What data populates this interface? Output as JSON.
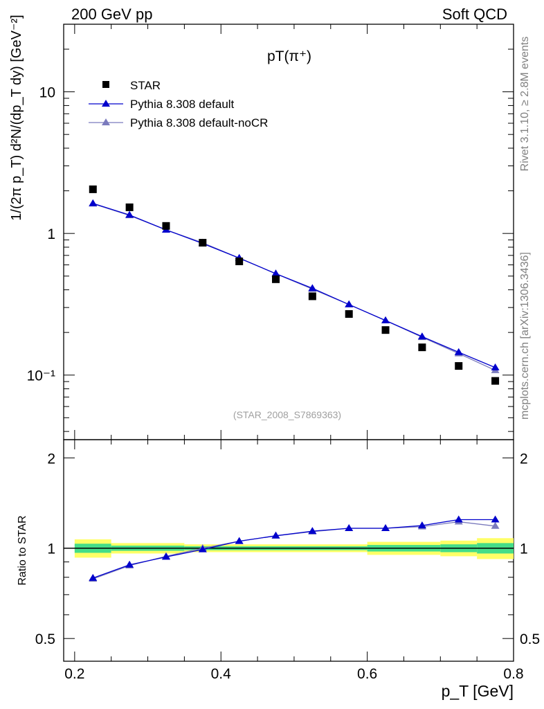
{
  "header": {
    "left": "200 GeV pp",
    "right": "Soft QCD"
  },
  "side": {
    "rivet": "Rivet 3.1.10, ≥ 2.8M events",
    "site": "mcplots.cern.ch [arXiv:1306.3436]"
  },
  "colors": {
    "data": "#000000",
    "default": "#0000cc",
    "noCR": "#7b7bbd",
    "band_inner": "#44dd88",
    "band_outer": "#ffff66"
  },
  "chart_data": {
    "type": "scatter",
    "title": "pT(π⁺)",
    "analysis": "(STAR_2008_S7869363)",
    "xlabel": "p_T [GeV]",
    "ylabel": "1/(2π p_T) d²N/(dp_T dy) [GeV⁻²]",
    "ratio_ylabel": "Ratio to STAR",
    "xlim": [
      0.185,
      0.8
    ],
    "ylim": [
      0.035,
      30
    ],
    "yscale": "log",
    "ratio_ylim": [
      0.42,
      2.3
    ],
    "ratio_yscale": "log",
    "x_ticks": [
      "0.2",
      "0.4",
      "0.6",
      "0.8"
    ],
    "y_ticks": [
      "10",
      "1",
      "10⁻¹"
    ],
    "ratio_ticks": [
      "2",
      "1",
      "0.5"
    ],
    "legend": [
      "STAR",
      "Pythia 8.308 default",
      "Pythia 8.308 default-noCR"
    ],
    "legend_position": "top-left",
    "x": [
      0.225,
      0.275,
      0.325,
      0.375,
      0.425,
      0.475,
      0.525,
      0.575,
      0.625,
      0.675,
      0.725,
      0.775
    ],
    "series": [
      {
        "name": "STAR",
        "values": [
          2.05,
          1.53,
          1.13,
          0.86,
          0.635,
          0.475,
          0.36,
          0.27,
          0.208,
          0.157,
          0.116,
          0.091
        ]
      },
      {
        "name": "Pythia 8.308 default",
        "values": [
          1.63,
          1.35,
          1.06,
          0.85,
          0.67,
          0.52,
          0.41,
          0.315,
          0.243,
          0.187,
          0.145,
          0.113
        ]
      },
      {
        "name": "Pythia 8.308 default-noCR",
        "values": [
          1.62,
          1.34,
          1.06,
          0.86,
          0.67,
          0.52,
          0.405,
          0.315,
          0.243,
          0.185,
          0.142,
          0.108
        ]
      }
    ],
    "ratio_series": [
      {
        "name": "Pythia 8.308 default",
        "values": [
          0.795,
          0.88,
          0.935,
          0.99,
          1.055,
          1.1,
          1.14,
          1.165,
          1.165,
          1.19,
          1.245,
          1.245
        ]
      },
      {
        "name": "Pythia 8.308 default-noCR",
        "values": [
          0.79,
          0.875,
          0.94,
          1.0,
          1.055,
          1.1,
          1.135,
          1.165,
          1.165,
          1.18,
          1.225,
          1.185
        ]
      }
    ],
    "uncertainty_bands": [
      {
        "x_range": [
          0.2,
          0.25
        ],
        "inner": 0.035,
        "outer": 0.07
      },
      {
        "x_range": [
          0.25,
          0.35
        ],
        "inner": 0.02,
        "outer": 0.04
      },
      {
        "x_range": [
          0.35,
          0.6
        ],
        "inner": 0.015,
        "outer": 0.03
      },
      {
        "x_range": [
          0.6,
          0.7
        ],
        "inner": 0.025,
        "outer": 0.05
      },
      {
        "x_range": [
          0.7,
          0.75
        ],
        "inner": 0.03,
        "outer": 0.06
      },
      {
        "x_range": [
          0.75,
          0.8
        ],
        "inner": 0.04,
        "outer": 0.08
      }
    ]
  }
}
